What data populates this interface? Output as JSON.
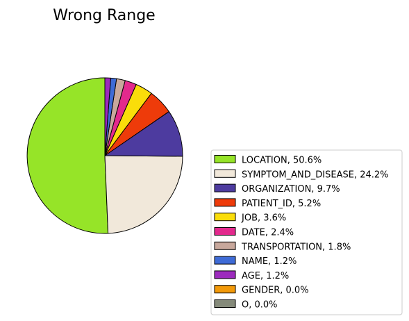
{
  "chart_data": {
    "type": "pie",
    "title": "Wrong Range",
    "legend_position": "lower-right",
    "start": "top, counterclockwise",
    "slices": [
      {
        "label": "LOCATION",
        "value": 50.6,
        "legend": "LOCATION, 50.6%",
        "color": "#96e428"
      },
      {
        "label": "SYMPTOM_AND_DISEASE",
        "value": 24.2,
        "legend": "SYMPTOM_AND_DISEASE, 24.2%",
        "color": "#f1e8da"
      },
      {
        "label": "ORGANIZATION",
        "value": 9.7,
        "legend": "ORGANIZATION, 9.7%",
        "color": "#4d3b9f"
      },
      {
        "label": "PATIENT_ID",
        "value": 5.2,
        "legend": "PATIENT_ID, 5.2%",
        "color": "#ee3b0a"
      },
      {
        "label": "JOB",
        "value": 3.6,
        "legend": "JOB, 3.6%",
        "color": "#fadd0a"
      },
      {
        "label": "DATE",
        "value": 2.4,
        "legend": "DATE, 2.4%",
        "color": "#e3298d"
      },
      {
        "label": "TRANSPORTATION",
        "value": 1.8,
        "legend": "TRANSPORTATION, 1.8%",
        "color": "#c8a89c"
      },
      {
        "label": "NAME",
        "value": 1.2,
        "legend": "NAME, 1.2%",
        "color": "#3e6bd6"
      },
      {
        "label": "AGE",
        "value": 1.2,
        "legend": "AGE, 1.2%",
        "color": "#9c2abd"
      },
      {
        "label": "GENDER",
        "value": 0.0,
        "legend": "GENDER, 0.0%",
        "color": "#f39a0a"
      },
      {
        "label": "O",
        "value": 0.0,
        "legend": "O, 0.0%",
        "color": "#858a7a"
      }
    ]
  }
}
